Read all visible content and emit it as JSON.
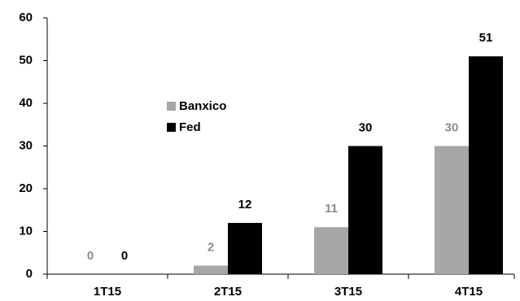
{
  "chart_data": {
    "type": "bar",
    "categories": [
      "1T15",
      "2T15",
      "3T15",
      "4T15"
    ],
    "series": [
      {
        "name": "Banxico",
        "color": "#a6a6a6",
        "values": [
          0,
          2,
          11,
          30
        ]
      },
      {
        "name": "Fed",
        "color": "#000000",
        "values": [
          0,
          12,
          30,
          51
        ]
      }
    ],
    "ylim": [
      0,
      60
    ],
    "yticks": [
      0,
      10,
      20,
      30,
      40,
      50,
      60
    ],
    "grid": false
  }
}
